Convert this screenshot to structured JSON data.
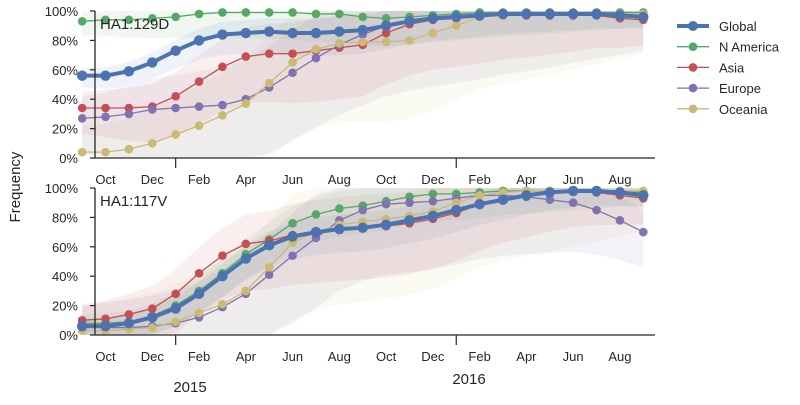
{
  "chart_data": [
    {
      "type": "line",
      "title": "HA1:129D",
      "ylabel": "Frequency",
      "ylim": [
        0,
        1
      ],
      "y_ticks": [
        "0%",
        "20%",
        "40%",
        "60%",
        "80%",
        "100%"
      ],
      "x_ticks": [
        "Oct",
        "Dec",
        "Feb",
        "Apr",
        "Jun",
        "Aug",
        "Oct",
        "Dec",
        "Feb",
        "Apr",
        "Jun",
        "Aug"
      ],
      "x": [
        "2014-09",
        "2014-10",
        "2014-11",
        "2014-12",
        "2015-01",
        "2015-02",
        "2015-03",
        "2015-04",
        "2015-05",
        "2015-06",
        "2015-07",
        "2015-08",
        "2015-09",
        "2015-10",
        "2015-11",
        "2015-12",
        "2016-01",
        "2016-02",
        "2016-03",
        "2016-04",
        "2016-05",
        "2016-06",
        "2016-07",
        "2016-08",
        "2016-09"
      ],
      "series": [
        {
          "name": "Global",
          "color": "#4c72b0",
          "values": [
            0.56,
            0.56,
            0.59,
            0.65,
            0.73,
            0.8,
            0.84,
            0.85,
            0.86,
            0.85,
            0.85,
            0.86,
            0.87,
            0.9,
            0.93,
            0.95,
            0.96,
            0.97,
            0.98,
            0.98,
            0.98,
            0.98,
            0.98,
            0.97,
            0.96
          ]
        },
        {
          "name": "N America",
          "color": "#55a868",
          "values": [
            0.93,
            0.94,
            0.94,
            0.95,
            0.96,
            0.98,
            0.99,
            0.99,
            0.99,
            0.99,
            0.98,
            0.98,
            0.96,
            0.95,
            0.96,
            0.97,
            0.98,
            0.99,
            0.99,
            0.99,
            0.99,
            0.99,
            0.99,
            0.99,
            0.99
          ]
        },
        {
          "name": "Asia",
          "color": "#c44e52",
          "values": [
            0.34,
            0.34,
            0.34,
            0.35,
            0.42,
            0.52,
            0.62,
            0.69,
            0.71,
            0.71,
            0.73,
            0.75,
            0.77,
            0.85,
            0.91,
            0.94,
            0.95,
            0.96,
            0.97,
            0.97,
            0.97,
            0.97,
            0.97,
            0.95,
            0.94
          ]
        },
        {
          "name": "Europe",
          "color": "#8172b2",
          "values": [
            0.27,
            0.28,
            0.3,
            0.33,
            0.34,
            0.35,
            0.36,
            0.4,
            0.48,
            0.58,
            0.68,
            0.77,
            0.84,
            0.9,
            0.93,
            0.95,
            0.96,
            0.97,
            0.98,
            0.98,
            0.98,
            0.98,
            0.98,
            0.97,
            0.97
          ]
        },
        {
          "name": "Oceania",
          "color": "#ccb974",
          "values": [
            0.04,
            0.04,
            0.06,
            0.1,
            0.16,
            0.22,
            0.29,
            0.37,
            0.51,
            0.65,
            0.74,
            0.78,
            0.79,
            0.79,
            0.8,
            0.85,
            0.9,
            0.96,
            0.97,
            0.98,
            0.98,
            0.98,
            0.98,
            0.98,
            0.98
          ]
        }
      ]
    },
    {
      "type": "line",
      "title": "HA1:117V",
      "ylabel": "Frequency",
      "xlabel_years": [
        "2015",
        "2016"
      ],
      "ylim": [
        0,
        1
      ],
      "y_ticks": [
        "0%",
        "20%",
        "40%",
        "60%",
        "80%",
        "100%"
      ],
      "x_ticks": [
        "Oct",
        "Dec",
        "Feb",
        "Apr",
        "Jun",
        "Aug",
        "Oct",
        "Dec",
        "Feb",
        "Apr",
        "Jun",
        "Aug"
      ],
      "x": [
        "2014-09",
        "2014-10",
        "2014-11",
        "2014-12",
        "2015-01",
        "2015-02",
        "2015-03",
        "2015-04",
        "2015-05",
        "2015-06",
        "2015-07",
        "2015-08",
        "2015-09",
        "2015-10",
        "2015-11",
        "2015-12",
        "2016-01",
        "2016-02",
        "2016-03",
        "2016-04",
        "2016-05",
        "2016-06",
        "2016-07",
        "2016-08",
        "2016-09"
      ],
      "series": [
        {
          "name": "Global",
          "color": "#4c72b0",
          "values": [
            0.06,
            0.06,
            0.08,
            0.12,
            0.18,
            0.28,
            0.4,
            0.52,
            0.61,
            0.67,
            0.7,
            0.72,
            0.73,
            0.75,
            0.78,
            0.81,
            0.85,
            0.89,
            0.92,
            0.95,
            0.97,
            0.98,
            0.98,
            0.97,
            0.95
          ]
        },
        {
          "name": "N America",
          "color": "#55a868",
          "values": [
            0.08,
            0.08,
            0.09,
            0.13,
            0.2,
            0.3,
            0.42,
            0.55,
            0.65,
            0.76,
            0.82,
            0.86,
            0.88,
            0.91,
            0.94,
            0.96,
            0.96,
            0.97,
            0.98,
            0.98,
            0.98,
            0.98,
            0.98,
            0.98,
            0.97
          ]
        },
        {
          "name": "Asia",
          "color": "#c44e52",
          "values": [
            0.1,
            0.11,
            0.14,
            0.18,
            0.28,
            0.42,
            0.54,
            0.62,
            0.64,
            0.68,
            0.7,
            0.72,
            0.73,
            0.74,
            0.76,
            0.79,
            0.83,
            0.89,
            0.93,
            0.95,
            0.97,
            0.98,
            0.97,
            0.95,
            0.93
          ]
        },
        {
          "name": "Europe",
          "color": "#8172b2",
          "values": [
            0.05,
            0.05,
            0.05,
            0.06,
            0.08,
            0.12,
            0.19,
            0.28,
            0.41,
            0.54,
            0.66,
            0.78,
            0.85,
            0.89,
            0.9,
            0.91,
            0.93,
            0.95,
            0.95,
            0.94,
            0.92,
            0.9,
            0.85,
            0.78,
            0.7
          ]
        },
        {
          "name": "Oceania",
          "color": "#ccb974",
          "values": [
            0.03,
            0.03,
            0.04,
            0.05,
            0.09,
            0.15,
            0.21,
            0.3,
            0.46,
            0.63,
            0.7,
            0.75,
            0.77,
            0.79,
            0.81,
            0.84,
            0.9,
            0.95,
            0.97,
            0.98,
            0.98,
            0.98,
            0.98,
            0.98,
            0.98
          ]
        }
      ]
    }
  ],
  "legend": {
    "placement": "right",
    "items": [
      {
        "name": "Global",
        "color": "#4c72b0"
      },
      {
        "name": "N America",
        "color": "#55a868"
      },
      {
        "name": "Asia",
        "color": "#c44e52"
      },
      {
        "name": "Europe",
        "color": "#8172b2"
      },
      {
        "name": "Oceania",
        "color": "#ccb974"
      }
    ]
  },
  "ylabel": "Frequency"
}
